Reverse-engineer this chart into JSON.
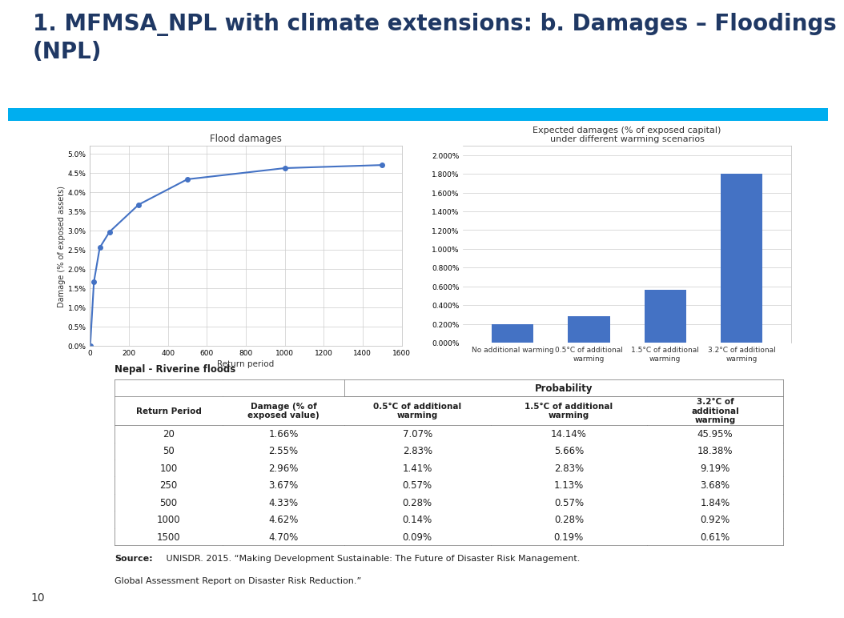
{
  "title_line1": "1. MFMSA_NPL with climate extensions: b. Damages – Floodings",
  "title_line2": "(NPL)",
  "title_color": "#1F3864",
  "title_fontsize": 20,
  "accent_bar_color": "#00AEEF",
  "slide_bg": "#FFFFFF",
  "chart1_title": "Flood damages",
  "chart1_xlabel": "Return period",
  "chart1_ylabel": "Damage (% of exposed assets)",
  "chart1_x": [
    1,
    20,
    50,
    100,
    250,
    500,
    1000,
    1500
  ],
  "chart1_y": [
    0.0,
    1.66,
    2.55,
    2.96,
    3.67,
    4.33,
    4.62,
    4.7
  ],
  "chart1_line_color": "#4472C4",
  "chart1_marker_color": "#4472C4",
  "chart1_xlim": [
    0,
    1600
  ],
  "chart1_ylim": [
    0,
    0.052
  ],
  "chart1_yticks": [
    0.0,
    0.5,
    1.0,
    1.5,
    2.0,
    2.5,
    3.0,
    3.5,
    4.0,
    4.5,
    5.0
  ],
  "chart1_xticks": [
    0,
    200,
    400,
    600,
    800,
    1000,
    1200,
    1400,
    1600
  ],
  "chart2_title1": "Expected damages (% of exposed capital)",
  "chart2_title2": "under different warming scenarios",
  "chart2_categories": [
    "No additional warming",
    "0.5°C of additional\nwarming",
    "1.5°C of additional\nwarming",
    "3.2°C of additional\nwarming"
  ],
  "chart2_values": [
    0.2,
    0.28,
    0.56,
    1.8
  ],
  "chart2_bar_color": "#4472C4",
  "chart2_ylim": [
    0,
    0.021
  ],
  "chart2_yticks": [
    0.0,
    0.2,
    0.4,
    0.6,
    0.8,
    1.0,
    1.2,
    1.4,
    1.6,
    1.8,
    2.0
  ],
  "table_title": "Nepal - Riverine floods",
  "table_headers_row0": [
    "",
    "",
    "Probability",
    "",
    ""
  ],
  "table_headers_row1": [
    "Return Period",
    "Damage (% of\nexposed value)",
    "0.5°C of additional\nwarming",
    "1.5°C of additional\nwarming",
    "3.2°C of\nadditional\nwarming"
  ],
  "table_data": [
    [
      "20",
      "1.66%",
      "7.07%",
      "14.14%",
      "45.95%"
    ],
    [
      "50",
      "2.55%",
      "2.83%",
      "5.66%",
      "18.38%"
    ],
    [
      "100",
      "2.96%",
      "1.41%",
      "2.83%",
      "9.19%"
    ],
    [
      "250",
      "3.67%",
      "0.57%",
      "1.13%",
      "3.68%"
    ],
    [
      "500",
      "4.33%",
      "0.28%",
      "0.57%",
      "1.84%"
    ],
    [
      "1000",
      "4.62%",
      "0.14%",
      "0.28%",
      "0.92%"
    ],
    [
      "1500",
      "4.70%",
      "0.09%",
      "0.19%",
      "0.61%"
    ]
  ],
  "source_bold": "Source:",
  "source_rest_line1": " UNISDR. 2015. “Making Development Sustainable: The Future of Disaster Risk Management.",
  "source_line2": "Global Assessment Report on Disaster Risk Reduction.”",
  "page_number": "10"
}
